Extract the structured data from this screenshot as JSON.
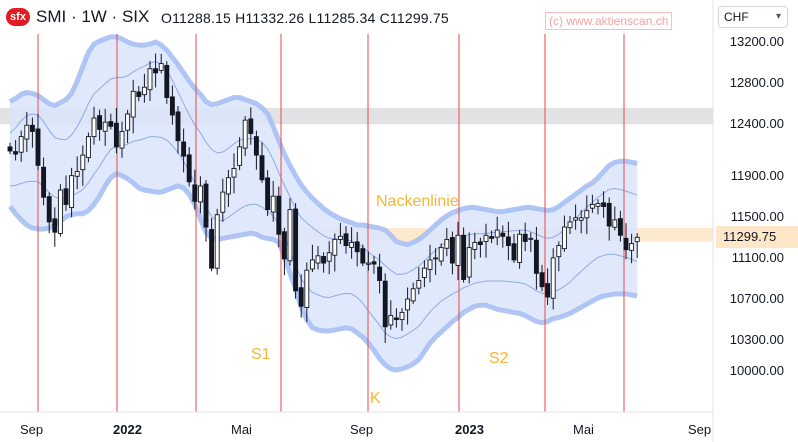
{
  "header": {
    "logo_text": "sfx",
    "title": "SMI · 1W · SIX",
    "ohlc": {
      "open_label": "O",
      "open": "11288.15",
      "high_label": "H",
      "high": "11332.26",
      "low_label": "L",
      "low": "11285.34",
      "close_label": "C",
      "close": "11299.75"
    },
    "watermark": "(c) www.aktienscan.ch",
    "currency": "CHF"
  },
  "current_price_label": "11299.75",
  "annotations": {
    "neckline": "Nackenlinie",
    "shoulder_1": "S1",
    "head": "K",
    "shoulder_2": "S2"
  },
  "colors": {
    "up": "#ffffff",
    "down": "#131722",
    "vline": "#e8474d",
    "band_fill": "#dbe5fb",
    "band_edge": "#a9c0f3",
    "band_inner": "#8fa9e8",
    "resistance": "#d8d8dc",
    "neckline_zone": "#fde7c8",
    "annotation": "#f5b731"
  },
  "chart_data": {
    "type": "candlestick",
    "timeframe": "1W",
    "y_ticks": [
      "10000.00",
      "10300.00",
      "10700.00",
      "11100.00",
      "11500.00",
      "11900.00",
      "12400.00",
      "12800.00",
      "13200.00"
    ],
    "x_ticks": [
      {
        "label": "Sep",
        "bold": false
      },
      {
        "label": "2022",
        "bold": true
      },
      {
        "label": "Mai",
        "bold": false
      },
      {
        "label": "Sep",
        "bold": false
      },
      {
        "label": "2023",
        "bold": true
      },
      {
        "label": "Mai",
        "bold": false
      },
      {
        "label": "Sep",
        "bold": false
      }
    ],
    "resistance_zone": [
      12400,
      12560
    ],
    "neckline_zone": [
      11260,
      11390
    ],
    "first_week": "2021-07-05",
    "closes": [
      12140,
      12110,
      12280,
      12390,
      12330,
      12000,
      11690,
      11450,
      11350,
      11760,
      11620,
      11900,
      11940,
      12100,
      12280,
      12460,
      12350,
      12420,
      12380,
      12180,
      12330,
      12500,
      12720,
      12670,
      12760,
      12940,
      12900,
      12990,
      12660,
      12490,
      12240,
      12090,
      11840,
      11650,
      11800,
      11400,
      11000,
      11520,
      11740,
      11880,
      11970,
      12180,
      12440,
      12310,
      12100,
      11860,
      11570,
      11700,
      11330,
      11090,
      11570,
      10780,
      10630,
      10980,
      11080,
      11120,
      11050,
      11150,
      11280,
      11310,
      11220,
      11250,
      11160,
      11050,
      11050,
      11040,
      10880,
      10430,
      10540,
      10500,
      10570,
      10700,
      10800,
      10880,
      11000,
      11080,
      11100,
      11200,
      11280,
      11050,
      11320,
      10890,
      11200,
      11250,
      11230,
      11320,
      11290,
      11370,
      11310,
      11220,
      11080,
      11330,
      11260,
      11290,
      10950,
      10820,
      10720,
      11100,
      11220,
      11400,
      11450,
      11490,
      11490,
      11560,
      11620,
      11630,
      11600,
      11410,
      11470,
      11320,
      11180,
      11240,
      11300
    ],
    "bb_mid": [
      12000,
      12080,
      12180,
      12260,
      12300,
      12300,
      12210,
      12080,
      11960,
      11900,
      11860,
      11890,
      11930,
      12000,
      12100,
      12210,
      12280,
      12360,
      12430,
      12460,
      12480,
      12540,
      12640,
      12710,
      12760,
      12810,
      12820,
      12800,
      12730,
      12600,
      12450,
      12300,
      12160,
      12040,
      11940,
      11830,
      11720,
      11640,
      11640,
      11690,
      11760,
      11830,
      11880,
      11900,
      11910,
      11890,
      11820,
      11730,
      11620,
      11500,
      11390,
      11260,
      11170,
      11140,
      11110,
      11080,
      11050,
      11040,
      11060,
      11080,
      11090,
      11090,
      11060,
      10990,
      10900,
      10830,
      10770,
      10680,
      10640,
      10620,
      10640,
      10680,
      10720,
      10760,
      10820,
      10880,
      10930,
      10980,
      11000,
      11020,
      11030,
      11050,
      11060,
      11080,
      11090,
      11110,
      11130,
      11150,
      11160,
      11160,
      11160,
      11160,
      11150,
      11120,
      11080,
      11040,
      11020,
      11030,
      11060,
      11110,
      11170,
      11250,
      11320,
      11390,
      11450,
      11500,
      11520,
      11530,
      11520,
      11490,
      11460,
      11430,
      11400
    ],
    "bb_upper": [
      12620,
      12650,
      12690,
      12710,
      12700,
      12680,
      12640,
      12600,
      12580,
      12610,
      12640,
      12700,
      12820,
      12960,
      13100,
      13180,
      13210,
      13230,
      13250,
      13250,
      13230,
      13200,
      13180,
      13170,
      13170,
      13180,
      13200,
      13170,
      13120,
      13050,
      12980,
      12900,
      12820,
      12750,
      12690,
      12620,
      12590,
      12600,
      12620,
      12640,
      12660,
      12660,
      12640,
      12620,
      12600,
      12560,
      12500,
      12380,
      12240,
      12110,
      12000,
      11900,
      11810,
      11740,
      11680,
      11630,
      11580,
      11540,
      11510,
      11480,
      11460,
      11440,
      11420,
      11420,
      11410,
      11400,
      11390,
      11370,
      11320,
      11260,
      11240,
      11230,
      11250,
      11280,
      11320,
      11370,
      11420,
      11470,
      11510,
      11540,
      11560,
      11580,
      11590,
      11590,
      11580,
      11570,
      11560,
      11550,
      11550,
      11560,
      11570,
      11580,
      11590,
      11590,
      11580,
      11570,
      11560,
      11570,
      11600,
      11640,
      11680,
      11720,
      11760,
      11800,
      11830,
      11880,
      11940,
      12000,
      12030,
      12040,
      12040,
      12030,
      12020
    ],
    "bb_lower": [
      11600,
      11530,
      11470,
      11420,
      11390,
      11380,
      11380,
      11390,
      11420,
      11460,
      11500,
      11520,
      11530,
      11530,
      11560,
      11620,
      11700,
      11800,
      11880,
      11920,
      11900,
      11870,
      11830,
      11780,
      11760,
      11750,
      11740,
      11740,
      11760,
      11780,
      11800,
      11780,
      11720,
      11620,
      11480,
      11350,
      11290,
      11280,
      11290,
      11300,
      11310,
      11320,
      11330,
      11340,
      11330,
      11300,
      11290,
      11280,
      11250,
      11110,
      10950,
      10800,
      10620,
      10500,
      10420,
      10400,
      10390,
      10390,
      10400,
      10410,
      10420,
      10410,
      10370,
      10330,
      10270,
      10200,
      10120,
      10060,
      10020,
      10010,
      10020,
      10040,
      10070,
      10110,
      10190,
      10270,
      10330,
      10380,
      10430,
      10480,
      10520,
      10570,
      10600,
      10630,
      10640,
      10640,
      10620,
      10600,
      10590,
      10580,
      10570,
      10560,
      10540,
      10510,
      10480,
      10470,
      10480,
      10510,
      10520,
      10540,
      10560,
      10590,
      10620,
      10650,
      10680,
      10710,
      10730,
      10740,
      10750,
      10750,
      10750,
      10740,
      10730
    ]
  }
}
